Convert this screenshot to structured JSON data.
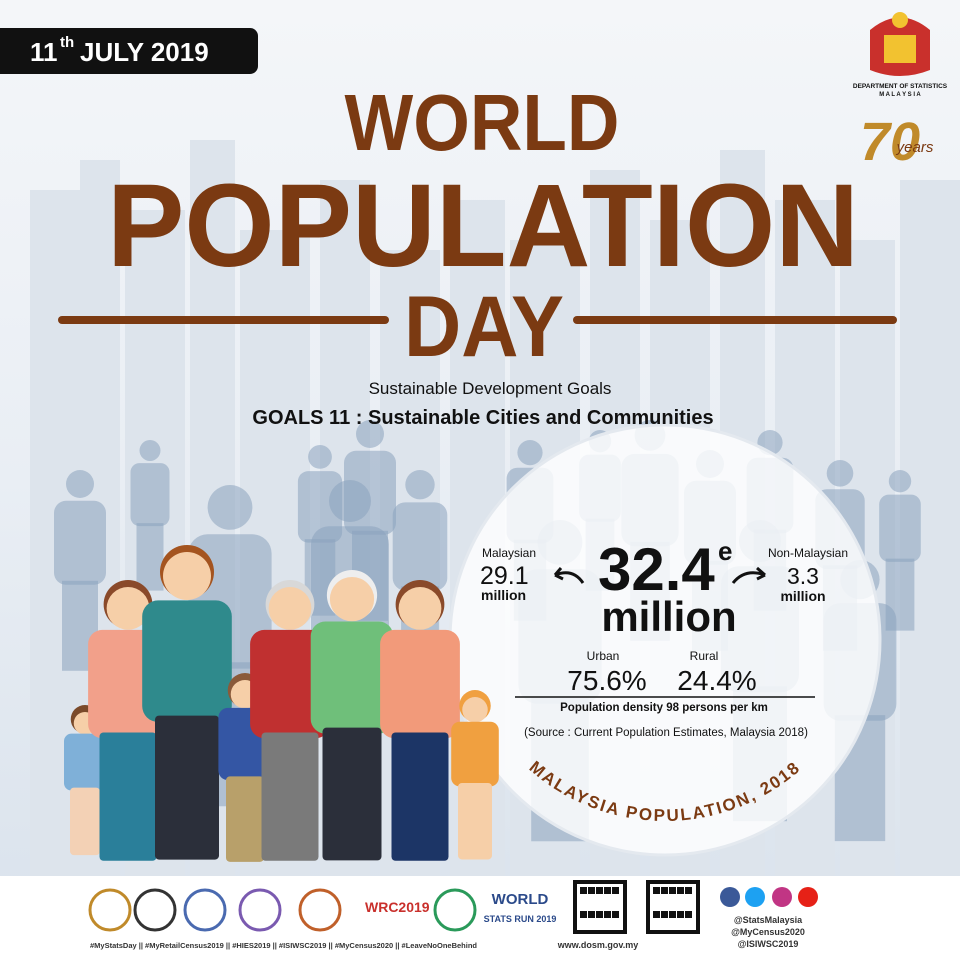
{
  "date": {
    "day": "11",
    "suffix": "th",
    "month_year": "JULY 2019"
  },
  "logo": {
    "line1": "DEPARTMENT OF STATISTICS",
    "line2": "M A L A Y S I A",
    "anniversary_number": "70",
    "anniversary_word": "years"
  },
  "title": {
    "line1": "WORLD",
    "line2": "POPULATION",
    "line3": "DAY"
  },
  "subtitle": "Sustainable Development Goals",
  "goal": "GOALS 11 : Sustainable Cities and Communities",
  "stats": {
    "total": "32.4",
    "total_mark": "e",
    "total_unit": "million",
    "malaysian": {
      "label": "Malaysian",
      "value": "29.1",
      "unit": "million"
    },
    "non_malaysian": {
      "label": "Non-Malaysian",
      "value": "3.3",
      "unit": "million"
    },
    "urban": {
      "label": "Urban",
      "value": "75.6%"
    },
    "rural": {
      "label": "Rural",
      "value": "24.4%"
    },
    "density": "Population density 98 persons per km",
    "source": "(Source : Current Population Estimates, Malaysia 2018)",
    "caption": "MALAYSIA POPULATION, 2018"
  },
  "footer": {
    "logos": [
      "WRC2019",
      "WORLD",
      "STATS RUN 2019"
    ],
    "hashtags": "#MyStatsDay || #MyRetailCensus2019 || #HIES2019 || #ISIWSC2019 || #MyCensus2020 || #LeaveNoOneBehind",
    "website": "www.dosm.gov.my",
    "handles": [
      "@StatsMalaysia",
      "@MyCensus2020",
      "@ISIWSC2019"
    ]
  }
}
